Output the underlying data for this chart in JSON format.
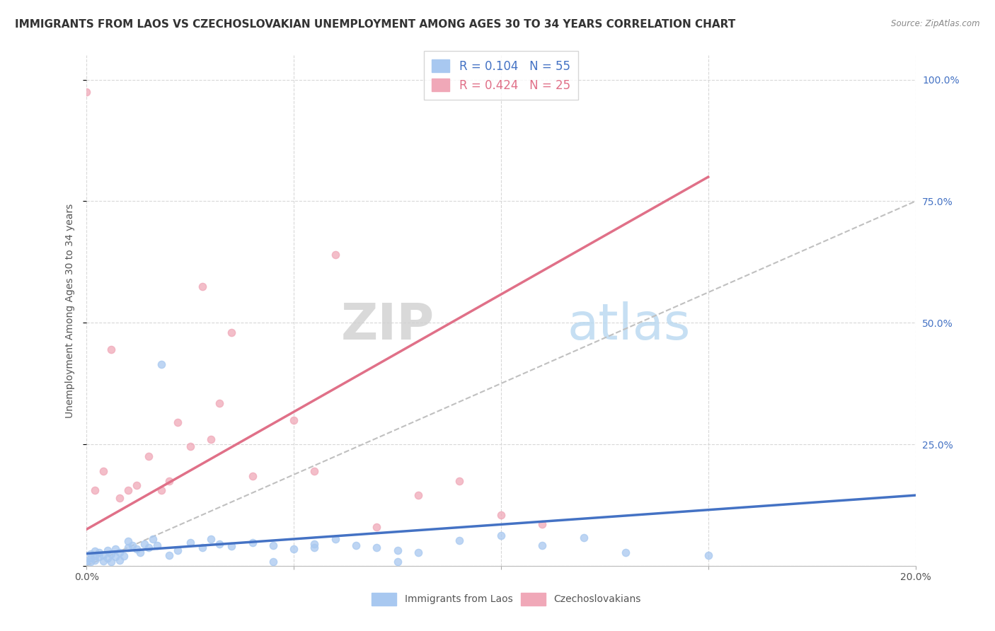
{
  "title": "IMMIGRANTS FROM LAOS VS CZECHOSLOVAKIAN UNEMPLOYMENT AMONG AGES 30 TO 34 YEARS CORRELATION CHART",
  "source": "Source: ZipAtlas.com",
  "ylabel": "Unemployment Among Ages 30 to 34 years",
  "xlim": [
    0.0,
    0.2
  ],
  "ylim": [
    0.0,
    1.05
  ],
  "x_ticks": [
    0.0,
    0.05,
    0.1,
    0.15,
    0.2
  ],
  "x_tick_labels": [
    "0.0%",
    "",
    "",
    "",
    "20.0%"
  ],
  "y_ticks": [
    0.0,
    0.25,
    0.5,
    0.75,
    1.0
  ],
  "y_tick_labels": [
    "",
    "25.0%",
    "50.0%",
    "75.0%",
    "100.0%"
  ],
  "watermark_text": "ZIPatlas",
  "blue_scatter_x": [
    0.0,
    0.001,
    0.001,
    0.001,
    0.002,
    0.002,
    0.002,
    0.003,
    0.003,
    0.004,
    0.004,
    0.005,
    0.005,
    0.006,
    0.006,
    0.007,
    0.007,
    0.008,
    0.008,
    0.009,
    0.01,
    0.01,
    0.011,
    0.012,
    0.013,
    0.014,
    0.015,
    0.016,
    0.017,
    0.018,
    0.02,
    0.022,
    0.025,
    0.028,
    0.03,
    0.032,
    0.035,
    0.04,
    0.045,
    0.05,
    0.055,
    0.06,
    0.065,
    0.07,
    0.075,
    0.08,
    0.09,
    0.1,
    0.11,
    0.12,
    0.045,
    0.055,
    0.075,
    0.13,
    0.15
  ],
  "blue_scatter_y": [
    0.01,
    0.008,
    0.015,
    0.025,
    0.012,
    0.02,
    0.03,
    0.018,
    0.028,
    0.01,
    0.022,
    0.015,
    0.032,
    0.008,
    0.025,
    0.018,
    0.035,
    0.012,
    0.028,
    0.02,
    0.038,
    0.05,
    0.042,
    0.035,
    0.028,
    0.045,
    0.038,
    0.055,
    0.042,
    0.415,
    0.022,
    0.032,
    0.048,
    0.038,
    0.055,
    0.045,
    0.04,
    0.048,
    0.042,
    0.035,
    0.045,
    0.055,
    0.042,
    0.038,
    0.032,
    0.028,
    0.052,
    0.062,
    0.042,
    0.058,
    0.008,
    0.038,
    0.008,
    0.028,
    0.022
  ],
  "pink_scatter_x": [
    0.0,
    0.002,
    0.004,
    0.006,
    0.008,
    0.01,
    0.012,
    0.015,
    0.018,
    0.02,
    0.022,
    0.025,
    0.028,
    0.03,
    0.032,
    0.035,
    0.04,
    0.05,
    0.055,
    0.06,
    0.07,
    0.08,
    0.09,
    0.1,
    0.11
  ],
  "pink_scatter_y": [
    0.975,
    0.155,
    0.195,
    0.445,
    0.14,
    0.155,
    0.165,
    0.225,
    0.155,
    0.175,
    0.295,
    0.245,
    0.575,
    0.26,
    0.335,
    0.48,
    0.185,
    0.3,
    0.195,
    0.64,
    0.08,
    0.145,
    0.175,
    0.105,
    0.085
  ],
  "blue_line_x": [
    0.0,
    0.2
  ],
  "blue_line_y": [
    0.025,
    0.145
  ],
  "pink_line_x": [
    0.0,
    0.15
  ],
  "pink_line_y": [
    0.075,
    0.8
  ],
  "grey_line_x": [
    0.0,
    0.2
  ],
  "grey_line_y": [
    0.0,
    0.75
  ],
  "blue_color": "#a8c8f0",
  "pink_color": "#f0a8b8",
  "blue_line_color": "#4472c4",
  "pink_line_color": "#e07088",
  "grey_line_color": "#c0c0c0",
  "background_color": "#ffffff",
  "grid_color": "#d8d8d8",
  "title_fontsize": 11,
  "axis_fontsize": 10,
  "tick_fontsize": 10,
  "legend_blue_label": "R = 0.104   N = 55",
  "legend_pink_label": "R = 0.424   N = 25",
  "bottom_legend_blue": "Immigrants from Laos",
  "bottom_legend_pink": "Czechoslovakians"
}
